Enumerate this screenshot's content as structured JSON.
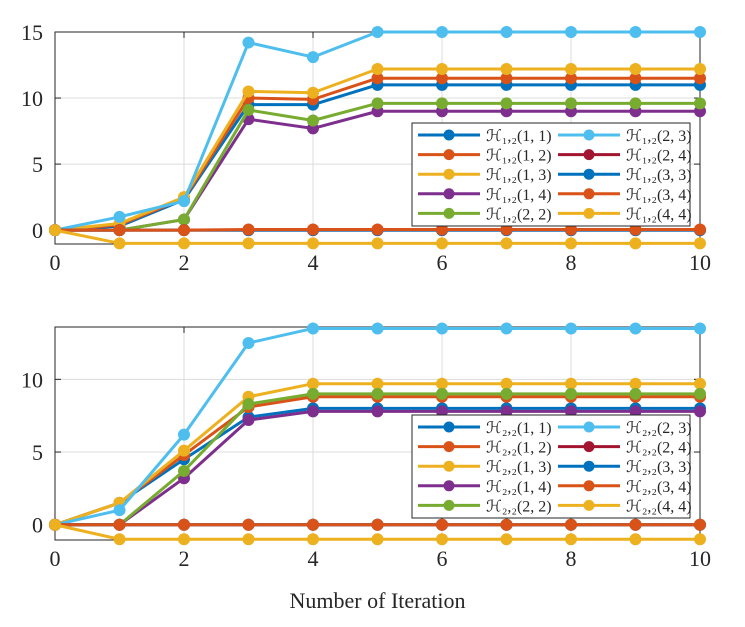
{
  "chart_data": [
    {
      "type": "line",
      "xlabel": "",
      "ylabel": "",
      "xlim": [
        0,
        10
      ],
      "ylim": [
        -1.05,
        15
      ],
      "xticks": [
        0,
        2,
        4,
        6,
        8,
        10
      ],
      "yticks": [
        0,
        5,
        10,
        15
      ],
      "grid": true,
      "legend_placement": "right",
      "x": [
        0,
        1,
        2,
        3,
        4,
        5,
        6,
        7,
        8,
        9,
        10
      ],
      "series": [
        {
          "name": "ℋ₁,₂(1, 1)",
          "color": "#0072BD",
          "values": [
            0,
            0.3,
            2.3,
            9.5,
            9.5,
            11,
            11,
            11,
            11,
            11,
            11
          ]
        },
        {
          "name": "ℋ₁,₂(1, 2)",
          "color": "#D95319",
          "values": [
            0,
            0.4,
            2.4,
            10,
            9.9,
            11.5,
            11.5,
            11.5,
            11.5,
            11.5,
            11.5
          ]
        },
        {
          "name": "ℋ₁,₂(1, 3)",
          "color": "#EDB120",
          "values": [
            0,
            0.5,
            2.5,
            10.5,
            10.4,
            12.2,
            12.2,
            12.2,
            12.2,
            12.2,
            12.2
          ]
        },
        {
          "name": "ℋ₁,₂(1, 4)",
          "color": "#7E2F8E",
          "values": [
            0,
            0,
            0.8,
            8.4,
            7.7,
            9,
            9,
            9,
            9,
            9,
            9
          ]
        },
        {
          "name": "ℋ₁,₂(2, 2)",
          "color": "#77AC30",
          "values": [
            0,
            0,
            0.8,
            9.1,
            8.3,
            9.6,
            9.6,
            9.6,
            9.6,
            9.6,
            9.6
          ]
        },
        {
          "name": "ℋ₁,₂(2, 3)",
          "color": "#4DBEEE",
          "values": [
            0,
            1,
            2.2,
            14.2,
            13.1,
            15,
            15,
            15,
            15,
            15,
            15
          ]
        },
        {
          "name": "ℋ₁,₂(2, 4)",
          "color": "#A2142F",
          "values": [
            0,
            0,
            0,
            0,
            0,
            0,
            0,
            0,
            0,
            0,
            0
          ]
        },
        {
          "name": "ℋ₁,₂(3, 3)",
          "color": "#0072BD",
          "values": [
            0,
            0,
            0,
            0,
            0,
            0,
            0,
            0,
            0,
            0,
            0
          ]
        },
        {
          "name": "ℋ₁,₂(3, 4)",
          "color": "#D95319",
          "values": [
            0,
            0,
            0,
            0.05,
            0.05,
            0.05,
            0.05,
            0.05,
            0.05,
            0.05,
            0.05
          ]
        },
        {
          "name": "ℋ₁,₂(4, 4)",
          "color": "#EDB120",
          "values": [
            0,
            -1,
            -1,
            -1,
            -1,
            -1,
            -1,
            -1,
            -1,
            -1,
            -1
          ]
        }
      ]
    },
    {
      "type": "line",
      "xlabel": "Number of Iteration",
      "ylabel": "",
      "xlim": [
        0,
        10
      ],
      "ylim": [
        -1.05,
        13.6
      ],
      "xticks": [
        0,
        2,
        4,
        6,
        8,
        10
      ],
      "yticks": [
        0,
        5,
        10
      ],
      "grid": true,
      "legend_placement": "right",
      "x": [
        0,
        1,
        2,
        3,
        4,
        5,
        6,
        7,
        8,
        9,
        10
      ],
      "series": [
        {
          "name": "ℋ₂,₂(1, 1)",
          "color": "#0072BD",
          "values": [
            0,
            1.5,
            4.5,
            7.4,
            8,
            8,
            8,
            8,
            8,
            8,
            8
          ]
        },
        {
          "name": "ℋ₂,₂(1, 2)",
          "color": "#D95319",
          "values": [
            0,
            1.5,
            4.8,
            8.1,
            8.8,
            8.8,
            8.8,
            8.8,
            8.8,
            8.8,
            8.8
          ]
        },
        {
          "name": "ℋ₂,₂(1, 3)",
          "color": "#EDB120",
          "values": [
            0,
            1.5,
            5.1,
            8.8,
            9.7,
            9.7,
            9.7,
            9.7,
            9.7,
            9.7,
            9.7
          ]
        },
        {
          "name": "ℋ₂,₂(1, 4)",
          "color": "#7E2F8E",
          "values": [
            0,
            0,
            3.2,
            7.2,
            7.8,
            7.8,
            7.8,
            7.8,
            7.8,
            7.8,
            7.8
          ]
        },
        {
          "name": "ℋ₂,₂(2, 2)",
          "color": "#77AC30",
          "values": [
            0,
            0,
            3.7,
            8.3,
            9,
            9,
            9,
            9,
            9,
            9,
            9
          ]
        },
        {
          "name": "ℋ₂,₂(2, 3)",
          "color": "#4DBEEE",
          "values": [
            0,
            1,
            6.2,
            12.5,
            13.5,
            13.5,
            13.5,
            13.5,
            13.5,
            13.5,
            13.5
          ]
        },
        {
          "name": "ℋ₂,₂(2, 4)",
          "color": "#A2142F",
          "values": [
            0,
            0,
            0,
            0,
            0,
            0,
            0,
            0,
            0,
            0,
            0
          ]
        },
        {
          "name": "ℋ₂,₂(3, 3)",
          "color": "#0072BD",
          "values": [
            0,
            0,
            0,
            0,
            0,
            0,
            0,
            0,
            0,
            0,
            0
          ]
        },
        {
          "name": "ℋ₂,₂(3, 4)",
          "color": "#D95319",
          "values": [
            0,
            0,
            0,
            0,
            0,
            0,
            0,
            0,
            0,
            0,
            0
          ]
        },
        {
          "name": "ℋ₂,₂(4, 4)",
          "color": "#EDB120",
          "values": [
            0,
            -1,
            -1,
            -1,
            -1,
            -1,
            -1,
            -1,
            -1,
            -1,
            -1
          ]
        }
      ]
    }
  ]
}
